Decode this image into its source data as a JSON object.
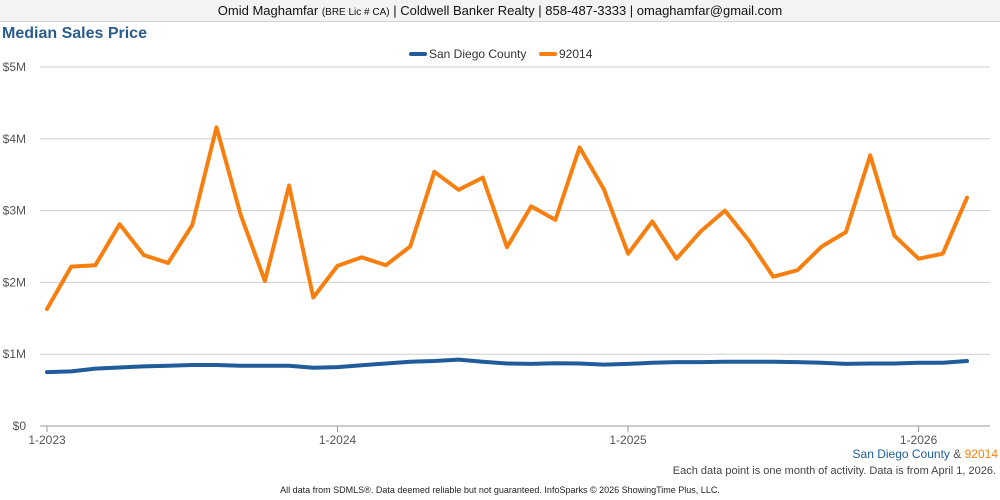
{
  "header": {
    "agent_name": "Omid Maghamfar",
    "license": "(BRE Lic # CA)",
    "rest": "| Coldwell Banker Realty | 858-487-3333 | omaghamfar@gmail.com"
  },
  "footer": {
    "legend_series1": "San Diego County",
    "legend_amp": "&",
    "legend_series2": "92014",
    "note": "Each data point is one month of activity. Data is from April 1, 2026.",
    "disclaimer": "All data from SDMLS®. Data deemed reliable but not guaranteed. InfoSparks © 2026 ShowingTime Plus, LLC."
  },
  "chart_data": {
    "type": "line",
    "title": "Median Sales Price",
    "xlabel": "",
    "ylabel": "",
    "ylim": [
      0,
      5000000
    ],
    "yticks": [
      0,
      1000000,
      2000000,
      3000000,
      4000000,
      5000000
    ],
    "ytick_labels": [
      "$0",
      "$1M",
      "$2M",
      "$3M",
      "$4M",
      "$5M"
    ],
    "xticks": [
      {
        "index": 0,
        "label": "1-2023"
      },
      {
        "index": 12,
        "label": "1-2024"
      },
      {
        "index": 24,
        "label": "1-2025"
      },
      {
        "index": 36,
        "label": "1-2026"
      }
    ],
    "grid": true,
    "legend_position": "top-center",
    "series": [
      {
        "name": "San Diego County",
        "color": "#1f5c99",
        "values": [
          750000,
          760000,
          800000,
          815000,
          830000,
          840000,
          850000,
          850000,
          840000,
          840000,
          840000,
          810000,
          820000,
          845000,
          870000,
          895000,
          905000,
          925000,
          895000,
          870000,
          865000,
          875000,
          870000,
          855000,
          865000,
          880000,
          890000,
          890000,
          895000,
          895000,
          895000,
          890000,
          880000,
          865000,
          870000,
          870000,
          880000,
          880000,
          905000
        ]
      },
      {
        "name": "92014",
        "color": "#f77f0f",
        "values": [
          1630000,
          2220000,
          2240000,
          2810000,
          2380000,
          2270000,
          2800000,
          4160000,
          2940000,
          2020000,
          3350000,
          1790000,
          2230000,
          2350000,
          2240000,
          2500000,
          3540000,
          3290000,
          3460000,
          2490000,
          3060000,
          2870000,
          3880000,
          3300000,
          2400000,
          2850000,
          2330000,
          2710000,
          3000000,
          2580000,
          2080000,
          2170000,
          2500000,
          2700000,
          3770000,
          2650000,
          2330000,
          2400000,
          3180000
        ]
      }
    ]
  }
}
